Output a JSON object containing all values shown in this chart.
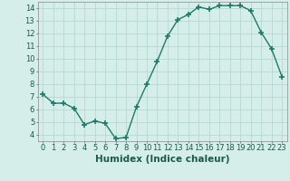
{
  "x": [
    0,
    1,
    2,
    3,
    4,
    5,
    6,
    7,
    8,
    9,
    10,
    11,
    12,
    13,
    14,
    15,
    16,
    17,
    18,
    19,
    20,
    21,
    22,
    23
  ],
  "y": [
    7.2,
    6.5,
    6.5,
    6.1,
    4.8,
    5.1,
    4.9,
    3.7,
    3.8,
    6.2,
    8.0,
    9.8,
    11.8,
    13.1,
    13.5,
    14.1,
    13.9,
    14.2,
    14.2,
    14.2,
    13.8,
    12.1,
    10.8,
    8.6
  ],
  "line_color": "#1e7a68",
  "marker": "+",
  "marker_size": 4,
  "marker_lw": 1.2,
  "line_width": 1.0,
  "bg_color": "#d5eeea",
  "grid_color": "#b8d8d2",
  "xlabel": "Humidex (Indice chaleur)",
  "xlabel_fontsize": 7.5,
  "tick_fontsize": 6.0,
  "xlim": [
    -0.5,
    23.5
  ],
  "ylim": [
    3.5,
    14.5
  ],
  "yticks": [
    4,
    5,
    6,
    7,
    8,
    9,
    10,
    11,
    12,
    13,
    14
  ],
  "xticks": [
    0,
    1,
    2,
    3,
    4,
    5,
    6,
    7,
    8,
    9,
    10,
    11,
    12,
    13,
    14,
    15,
    16,
    17,
    18,
    19,
    20,
    21,
    22,
    23
  ]
}
